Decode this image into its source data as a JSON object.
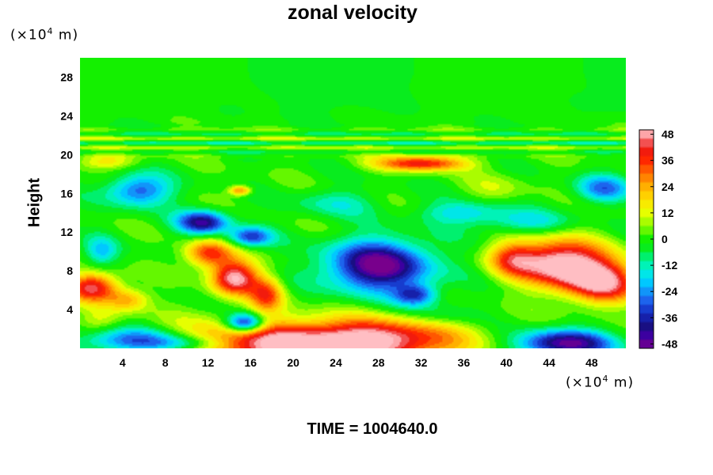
{
  "chart_data": {
    "type": "heatmap",
    "title": "zonal velocity",
    "ylabel": "Height",
    "xlabel": "",
    "x_unit": "(×10",
    "x_unit_exp": "4",
    "x_unit_tail": " m)",
    "y_unit": "(×10",
    "y_unit_exp": "4",
    "y_unit_tail": " m)",
    "xlim": [
      0,
      51.2
    ],
    "ylim": [
      0,
      30
    ],
    "xticks": [
      4,
      8,
      12,
      16,
      20,
      24,
      28,
      32,
      36,
      40,
      44,
      48
    ],
    "yticks": [
      4,
      8,
      12,
      16,
      20,
      24,
      28
    ],
    "colorbar": {
      "ticks": [
        48,
        36,
        24,
        12,
        0,
        -12,
        -24,
        -36,
        -48
      ],
      "range": [
        -50,
        50
      ]
    },
    "features": [
      {
        "x": 21.5,
        "y": 0.3,
        "sx": 12,
        "sy": 2.5,
        "v": 58
      },
      {
        "x": 29,
        "y": 1.2,
        "sx": 6,
        "sy": 1.8,
        "v": 18
      },
      {
        "x": 45,
        "y": 8.8,
        "sx": 4.2,
        "sy": 2.4,
        "v": 56
      },
      {
        "x": 49,
        "y": 6.8,
        "sx": 3.5,
        "sy": 2.2,
        "v": 45
      },
      {
        "x": 40.5,
        "y": 9.3,
        "sx": 2.2,
        "sy": 1.8,
        "v": 25
      },
      {
        "x": 14.5,
        "y": 7.3,
        "sx": 2.2,
        "sy": 1.8,
        "v": 50
      },
      {
        "x": 12,
        "y": 9.8,
        "sx": 2.2,
        "sy": 1.4,
        "v": 36
      },
      {
        "x": 17.5,
        "y": 5.5,
        "sx": 1.6,
        "sy": 1.8,
        "v": 32
      },
      {
        "x": 1.2,
        "y": 6.3,
        "sx": 2.4,
        "sy": 1.5,
        "v": 44
      },
      {
        "x": 4.5,
        "y": 5.0,
        "sx": 2,
        "sy": 1.2,
        "v": 22
      },
      {
        "x": 28,
        "y": 8.5,
        "sx": 4.8,
        "sy": 2.6,
        "v": -52
      },
      {
        "x": 31.5,
        "y": 5.5,
        "sx": 2,
        "sy": 1.1,
        "v": -30
      },
      {
        "x": 15.5,
        "y": 2.6,
        "sx": 1.8,
        "sy": 1.0,
        "v": -46
      },
      {
        "x": 5,
        "y": 0.8,
        "sx": 5,
        "sy": 1.3,
        "v": -34
      },
      {
        "x": 10,
        "y": 0.4,
        "sx": 4,
        "sy": 0.9,
        "v": -20
      },
      {
        "x": 45.5,
        "y": 0.5,
        "sx": 4.5,
        "sy": 1.4,
        "v": -48
      },
      {
        "x": 11.5,
        "y": 13.0,
        "sx": 2.4,
        "sy": 1.2,
        "v": -42
      },
      {
        "x": 16,
        "y": 11.5,
        "sx": 2,
        "sy": 1.0,
        "v": -32
      },
      {
        "x": 5.5,
        "y": 16.3,
        "sx": 3,
        "sy": 1.6,
        "v": -30
      },
      {
        "x": 2.0,
        "y": 10,
        "sx": 1.5,
        "sy": 1.5,
        "v": -18
      },
      {
        "x": 32,
        "y": 19.1,
        "sx": 4.2,
        "sy": 0.8,
        "v": 40
      },
      {
        "x": 49,
        "y": 16.5,
        "sx": 2.5,
        "sy": 1.4,
        "v": -26
      },
      {
        "x": 42,
        "y": 13,
        "sx": 4,
        "sy": 1.2,
        "v": -16
      },
      {
        "x": 36,
        "y": 14,
        "sx": 4,
        "sy": 1.2,
        "v": -18
      },
      {
        "x": 24,
        "y": 15,
        "sx": 4,
        "sy": 1.4,
        "v": -12
      },
      {
        "x": 39,
        "y": 16.5,
        "sx": 3,
        "sy": 1.5,
        "v": 8
      },
      {
        "x": 2.5,
        "y": 19.3,
        "sx": 3,
        "sy": 0.8,
        "v": 16
      },
      {
        "x": 15,
        "y": 16.3,
        "sx": 1.0,
        "sy": 0.5,
        "v": 30
      },
      {
        "x": 2,
        "y": 3.0,
        "sx": 2,
        "sy": 1.2,
        "v": 10
      },
      {
        "x": 34,
        "y": 3.5,
        "sx": 3,
        "sy": 1.2,
        "v": -8
      }
    ]
  },
  "footer": {
    "time_label": "TIME = 1004640.0"
  }
}
